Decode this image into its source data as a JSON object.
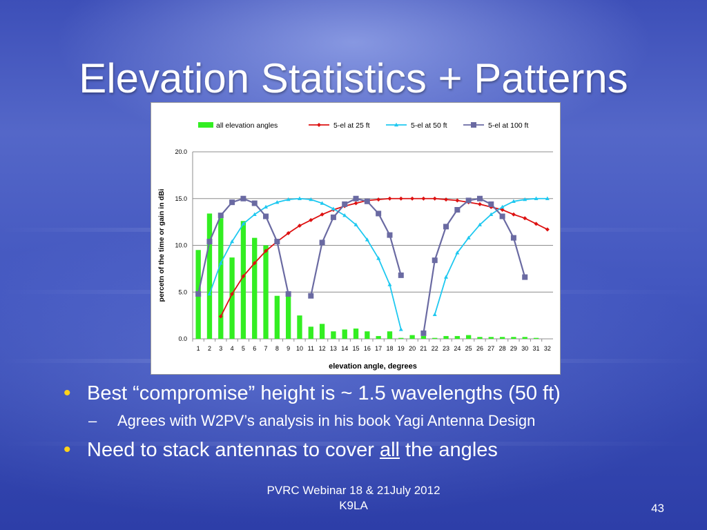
{
  "slide": {
    "title": "Elevation Statistics + Patterns",
    "bullets": [
      {
        "level": 1,
        "text": "Best “compromise” height is ~ 1.5 wavelengths (50 ft)"
      },
      {
        "level": 2,
        "text": "Agrees with W2PV’s analysis in his book Yagi Antenna Design"
      },
      {
        "level": 1,
        "text_before": "Need to stack antennas to cover ",
        "text_underlined": "all",
        "text_after": " the angles"
      }
    ],
    "footer_line1": "PVRC Webinar 18 & 21July 2012",
    "footer_line2": "K9LA",
    "page_number": "43"
  },
  "chart_data": {
    "type": "bar+line",
    "xlabel": "elevation angle, degrees",
    "ylabel": "percetn of the time or gain in dBi",
    "ylim": [
      0,
      20
    ],
    "yticks": [
      "0.0",
      "5.0",
      "10.0",
      "15.0",
      "20.0"
    ],
    "grid": true,
    "legend_position": "top",
    "categories": [
      "1",
      "2",
      "3",
      "4",
      "5",
      "6",
      "7",
      "8",
      "9",
      "10",
      "11",
      "12",
      "13",
      "14",
      "15",
      "16",
      "17",
      "18",
      "19",
      "20",
      "21",
      "22",
      "23",
      "24",
      "25",
      "26",
      "27",
      "28",
      "29",
      "30",
      "31",
      "32"
    ],
    "bar_series": {
      "name": "all elevation angles",
      "color": "#33ee22",
      "values": [
        9.5,
        13.4,
        12.9,
        8.7,
        12.6,
        10.8,
        10.0,
        4.6,
        5.0,
        2.5,
        1.3,
        1.6,
        0.8,
        1.0,
        1.1,
        0.8,
        0.3,
        0.8,
        0.1,
        0.4,
        0.3,
        0.1,
        0.3,
        0.3,
        0.4,
        0.2,
        0.2,
        0.2,
        0.2,
        0.2,
        0.1,
        0.0
      ]
    },
    "line_series": [
      {
        "name": "5-el at 25 ft",
        "color": "#dd1111",
        "marker": "diamond",
        "values": [
          null,
          null,
          2.4,
          4.8,
          6.7,
          8.1,
          9.4,
          10.4,
          11.3,
          12.1,
          12.7,
          13.3,
          13.8,
          14.2,
          14.5,
          14.8,
          14.9,
          15.0,
          15.0,
          15.0,
          15.0,
          15.0,
          14.9,
          14.8,
          14.6,
          14.4,
          14.1,
          13.8,
          13.3,
          12.9,
          12.3,
          11.7
        ]
      },
      {
        "name": "5-el at 50 ft",
        "color": "#1ec8f0",
        "marker": "triangle",
        "values": [
          null,
          4.8,
          8.1,
          10.4,
          12.3,
          13.3,
          14.1,
          14.6,
          14.9,
          15.0,
          14.9,
          14.5,
          13.9,
          13.2,
          12.2,
          10.6,
          8.6,
          5.8,
          1.0,
          null,
          null,
          2.6,
          6.6,
          9.2,
          10.8,
          12.2,
          13.3,
          14.1,
          14.7,
          14.9,
          15.0,
          15.0
        ]
      },
      {
        "name": "5-el at 100 ft",
        "color": "#6a6aa2",
        "marker": "square",
        "values": [
          4.8,
          10.4,
          13.2,
          14.6,
          15.0,
          14.5,
          13.1,
          10.4,
          4.8,
          null,
          4.6,
          10.3,
          13.0,
          14.4,
          15.0,
          14.7,
          13.4,
          11.1,
          6.8,
          null,
          0.6,
          8.4,
          12.0,
          13.8,
          14.8,
          15.0,
          14.4,
          13.1,
          10.8,
          6.6,
          null,
          null
        ]
      }
    ]
  }
}
